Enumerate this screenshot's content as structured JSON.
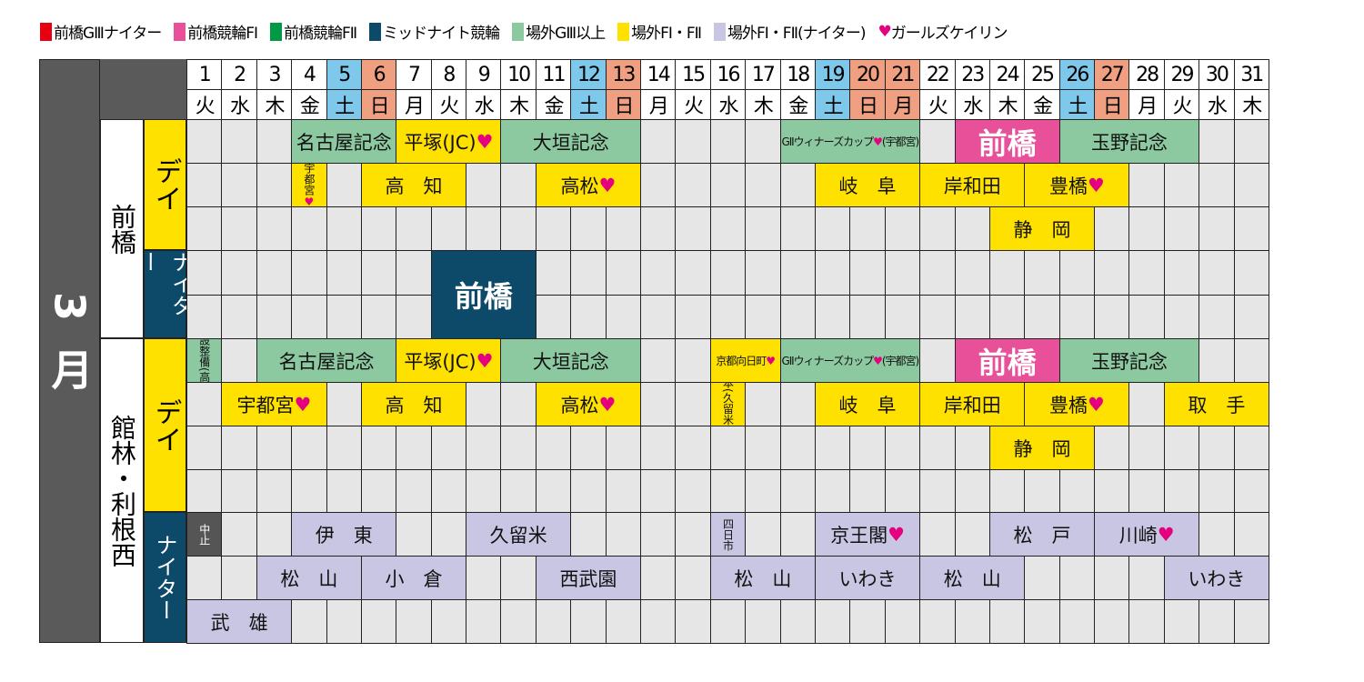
{
  "legend": [
    {
      "label": "前橋GⅢナイター",
      "color": "#e60012"
    },
    {
      "label": "前橋競輪FⅠ",
      "color": "#e8509a"
    },
    {
      "label": "前橋競輪FⅡ",
      "color": "#009944"
    },
    {
      "label": "ミッドナイト競輪",
      "color": "#0d4a6a"
    },
    {
      "label": "場外GⅢ以上",
      "color": "#8cc9a0"
    },
    {
      "label": "場外FⅠ・FⅡ",
      "color": "#ffe100"
    },
    {
      "label": "場外FⅠ・FⅡ(ナイター)",
      "color": "#c9c6e3"
    },
    {
      "label": "ガールズケイリン",
      "icon": "heart-icon",
      "glyph": "♥",
      "color": "#e4007f"
    }
  ],
  "month": "3月",
  "days": [
    "1",
    "2",
    "3",
    "4",
    "5",
    "6",
    "7",
    "8",
    "9",
    "10",
    "11",
    "12",
    "13",
    "14",
    "15",
    "16",
    "17",
    "18",
    "19",
    "20",
    "21",
    "22",
    "23",
    "24",
    "25",
    "26",
    "27",
    "28",
    "29",
    "30",
    "31"
  ],
  "weekdays": [
    "火",
    "水",
    "木",
    "金",
    "土",
    "日",
    "月",
    "火",
    "水",
    "木",
    "金",
    "土",
    "日",
    "月",
    "火",
    "水",
    "木",
    "金",
    "土",
    "日",
    "月",
    "火",
    "水",
    "木",
    "金",
    "土",
    "日",
    "月",
    "火",
    "水",
    "木"
  ],
  "saturday_color": "#7ec8ec",
  "holiday_color": "#f0a080",
  "holidays": [
    6,
    13,
    20,
    21,
    27
  ],
  "saturdays": [
    5,
    12,
    19,
    26
  ],
  "venues": [
    {
      "name": "前橋",
      "day_label": "デイ",
      "night_label": "ナイター"
    },
    {
      "name": "館林・利根西",
      "day_label": "デイ",
      "night_label": "ナイター"
    }
  ],
  "type_colors": {
    "g3": "#8cc9a0",
    "f": "#ffe100",
    "fn": "#c9c6e3",
    "midnight": "#0d4a6a",
    "maebashi_f1": "#e8509a",
    "cancel": "#555555"
  },
  "events": [
    {
      "v": 0,
      "sec": "day",
      "row": 0,
      "s": 4,
      "e": 6,
      "label": "名古屋記念",
      "type": "g3"
    },
    {
      "v": 0,
      "sec": "day",
      "row": 0,
      "s": 7,
      "e": 9,
      "label": "平塚(JC)",
      "type": "f",
      "heart": true
    },
    {
      "v": 0,
      "sec": "day",
      "row": 0,
      "s": 10,
      "e": 13,
      "label": "大垣記念",
      "type": "g3"
    },
    {
      "v": 0,
      "sec": "day",
      "row": 0,
      "s": 18,
      "e": 21,
      "label": "GⅡウィナーズカップ",
      "suffix": "(宇都宮)",
      "type": "g3",
      "heart": true,
      "size": "tiny"
    },
    {
      "v": 0,
      "sec": "day",
      "row": 0,
      "s": 23,
      "e": 25,
      "label": "前橋",
      "type": "maebashi_f1",
      "size": "big"
    },
    {
      "v": 0,
      "sec": "day",
      "row": 0,
      "s": 26,
      "e": 29,
      "label": "玉野記念",
      "type": "g3"
    },
    {
      "v": 0,
      "sec": "day",
      "row": 1,
      "s": 4,
      "e": 4,
      "label": "宇都宮",
      "type": "f",
      "heart": true,
      "size": "vert"
    },
    {
      "v": 0,
      "sec": "day",
      "row": 1,
      "s": 6,
      "e": 8,
      "label": "高　知",
      "type": "f"
    },
    {
      "v": 0,
      "sec": "day",
      "row": 1,
      "s": 11,
      "e": 13,
      "label": "高松",
      "type": "f",
      "heart": true
    },
    {
      "v": 0,
      "sec": "day",
      "row": 1,
      "s": 19,
      "e": 21,
      "label": "岐　阜",
      "type": "f"
    },
    {
      "v": 0,
      "sec": "day",
      "row": 1,
      "s": 22,
      "e": 24,
      "label": "岸和田",
      "type": "f"
    },
    {
      "v": 0,
      "sec": "day",
      "row": 1,
      "s": 25,
      "e": 27,
      "label": "豊橋",
      "type": "f",
      "heart": true
    },
    {
      "v": 0,
      "sec": "day",
      "row": 2,
      "s": 24,
      "e": 26,
      "label": "静　岡",
      "type": "f"
    },
    {
      "v": 0,
      "sec": "night",
      "row": 0,
      "rows": 2,
      "s": 8,
      "e": 10,
      "label": "前橋",
      "type": "midnight",
      "size": "big"
    },
    {
      "v": 1,
      "sec": "day",
      "row": 0,
      "s": 1,
      "e": 1,
      "label": "施設整備(高知)",
      "type": "g3",
      "size": "vert"
    },
    {
      "v": 1,
      "sec": "day",
      "row": 0,
      "s": 3,
      "e": 6,
      "label": "名古屋記念",
      "type": "g3"
    },
    {
      "v": 1,
      "sec": "day",
      "row": 0,
      "s": 7,
      "e": 9,
      "label": "平塚(JC)",
      "type": "f",
      "heart": true
    },
    {
      "v": 1,
      "sec": "day",
      "row": 0,
      "s": 10,
      "e": 13,
      "label": "大垣記念",
      "type": "g3"
    },
    {
      "v": 1,
      "sec": "day",
      "row": 0,
      "s": 16,
      "e": 17,
      "label": "京都向日町",
      "type": "f",
      "heart": true,
      "size": "tiny"
    },
    {
      "v": 1,
      "sec": "day",
      "row": 0,
      "s": 18,
      "e": 21,
      "label": "GⅡウィナーズカップ",
      "suffix": "(宇都宮)",
      "type": "g3",
      "heart": true,
      "size": "tiny"
    },
    {
      "v": 1,
      "sec": "day",
      "row": 0,
      "s": 23,
      "e": 25,
      "label": "前橋",
      "type": "maebashi_f1",
      "size": "big"
    },
    {
      "v": 1,
      "sec": "day",
      "row": 0,
      "s": 26,
      "e": 29,
      "label": "玉野記念",
      "type": "g3"
    },
    {
      "v": 1,
      "sec": "day",
      "row": 1,
      "s": 2,
      "e": 4,
      "label": "宇都宮",
      "type": "f",
      "heart": true
    },
    {
      "v": 1,
      "sec": "day",
      "row": 1,
      "s": 6,
      "e": 8,
      "label": "高　知",
      "type": "f"
    },
    {
      "v": 1,
      "sec": "day",
      "row": 1,
      "s": 11,
      "e": 13,
      "label": "高松",
      "type": "f",
      "heart": true
    },
    {
      "v": 1,
      "sec": "day",
      "row": 1,
      "s": 16,
      "e": 16,
      "label": "熊本(久留米)",
      "type": "f",
      "heart": true,
      "size": "vert"
    },
    {
      "v": 1,
      "sec": "day",
      "row": 1,
      "s": 19,
      "e": 21,
      "label": "岐　阜",
      "type": "f"
    },
    {
      "v": 1,
      "sec": "day",
      "row": 1,
      "s": 22,
      "e": 24,
      "label": "岸和田",
      "type": "f"
    },
    {
      "v": 1,
      "sec": "day",
      "row": 1,
      "s": 25,
      "e": 27,
      "label": "豊橋",
      "type": "f",
      "heart": true
    },
    {
      "v": 1,
      "sec": "day",
      "row": 1,
      "s": 29,
      "e": 31,
      "label": "取　手",
      "type": "f"
    },
    {
      "v": 1,
      "sec": "day",
      "row": 2,
      "s": 24,
      "e": 26,
      "label": "静　岡",
      "type": "f"
    },
    {
      "v": 1,
      "sec": "night",
      "row": 0,
      "s": 1,
      "e": 1,
      "label": "中止",
      "type": "cancel",
      "size": "vert"
    },
    {
      "v": 1,
      "sec": "night",
      "row": 0,
      "s": 4,
      "e": 6,
      "label": "伊　東",
      "type": "fn"
    },
    {
      "v": 1,
      "sec": "night",
      "row": 0,
      "s": 9,
      "e": 11,
      "label": "久留米",
      "type": "fn"
    },
    {
      "v": 1,
      "sec": "night",
      "row": 0,
      "s": 16,
      "e": 16,
      "label": "四日市",
      "type": "fn",
      "size": "vert"
    },
    {
      "v": 1,
      "sec": "night",
      "row": 0,
      "s": 19,
      "e": 21,
      "label": "京王閣",
      "type": "fn",
      "heart": true
    },
    {
      "v": 1,
      "sec": "night",
      "row": 0,
      "s": 24,
      "e": 26,
      "label": "松　戸",
      "type": "fn"
    },
    {
      "v": 1,
      "sec": "night",
      "row": 0,
      "s": 27,
      "e": 29,
      "label": "川崎",
      "type": "fn",
      "heart": true
    },
    {
      "v": 1,
      "sec": "night",
      "row": 1,
      "s": 3,
      "e": 5,
      "label": "松　山",
      "type": "fn"
    },
    {
      "v": 1,
      "sec": "night",
      "row": 1,
      "s": 6,
      "e": 8,
      "label": "小　倉",
      "type": "fn"
    },
    {
      "v": 1,
      "sec": "night",
      "row": 1,
      "s": 11,
      "e": 13,
      "label": "西武園",
      "type": "fn"
    },
    {
      "v": 1,
      "sec": "night",
      "row": 1,
      "s": 16,
      "e": 18,
      "label": "松　山",
      "type": "fn"
    },
    {
      "v": 1,
      "sec": "night",
      "row": 1,
      "s": 19,
      "e": 21,
      "label": "いわき",
      "type": "fn"
    },
    {
      "v": 1,
      "sec": "night",
      "row": 1,
      "s": 22,
      "e": 24,
      "label": "松　山",
      "type": "fn"
    },
    {
      "v": 1,
      "sec": "night",
      "row": 1,
      "s": 29,
      "e": 31,
      "label": "いわき",
      "type": "fn"
    },
    {
      "v": 1,
      "sec": "night",
      "row": 2,
      "s": 1,
      "e": 3,
      "label": "武　雄",
      "type": "fn"
    }
  ]
}
